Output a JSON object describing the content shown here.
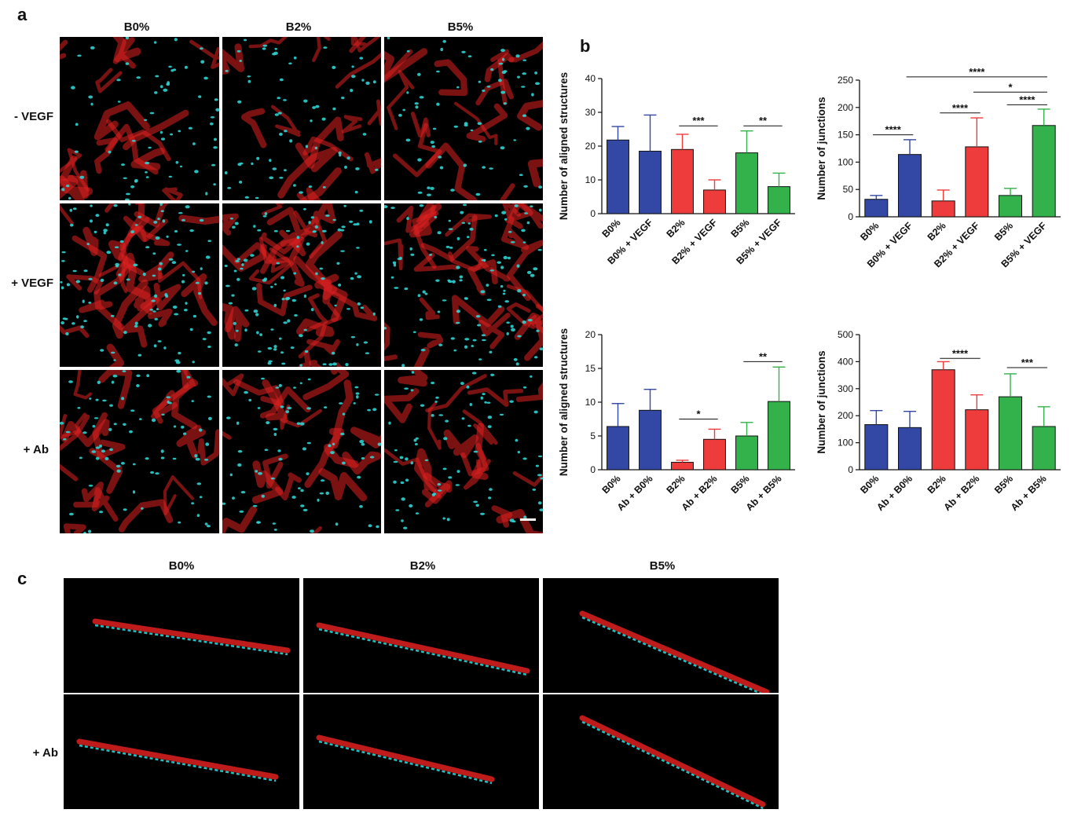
{
  "panel_a": {
    "letter": "a",
    "columns": [
      "B0%",
      "B2%",
      "B5%"
    ],
    "rows": [
      "- VEGF",
      "+ VEGF",
      "+ Ab"
    ]
  },
  "panel_b": {
    "letter": "b"
  },
  "panel_c": {
    "letter": "c",
    "columns": [
      "B0%",
      "B2%",
      "B5%"
    ],
    "rows": [
      "",
      "+ Ab"
    ]
  },
  "colors": {
    "blue": "#3347a4",
    "red": "#ee3b3b",
    "green": "#33b24b",
    "nuclei": "#2ed3d3",
    "actin": "#e02020"
  },
  "chart_data": [
    {
      "type": "bar",
      "ylabel": "Number of aligned structures",
      "ylim": [
        0,
        40
      ],
      "yticks": [
        0,
        10,
        20,
        30,
        40
      ],
      "categories": [
        "B0%",
        "B0% + VEGF",
        "B2%",
        "B2% + VEGF",
        "B5%",
        "B5% + VEGF"
      ],
      "values": [
        21.8,
        18.5,
        19,
        7,
        18,
        8
      ],
      "errors": [
        4,
        10.7,
        4.5,
        3,
        6.5,
        4
      ],
      "colors": [
        "blue",
        "blue",
        "red",
        "red",
        "green",
        "green"
      ],
      "significance": [
        {
          "from": 2,
          "to": 3,
          "label": "***",
          "y": 26
        },
        {
          "from": 4,
          "to": 5,
          "label": "**",
          "y": 26
        }
      ]
    },
    {
      "type": "bar",
      "ylabel": "Number of junctions",
      "ylim": [
        0,
        250
      ],
      "yticks": [
        0,
        50,
        100,
        150,
        200,
        250
      ],
      "categories": [
        "B0%",
        "B0% + VEGF",
        "B2%",
        "B2% + VEGF",
        "B5%",
        "B5% + VEGF"
      ],
      "values": [
        32,
        114,
        29,
        128,
        39,
        167
      ],
      "errors": [
        7,
        27,
        20,
        53,
        13,
        30
      ],
      "colors": [
        "blue",
        "blue",
        "red",
        "red",
        "green",
        "green"
      ],
      "significance": [
        {
          "from": 0,
          "to": 1,
          "label": "****",
          "y": 150
        },
        {
          "from": 2,
          "to": 3,
          "label": "****",
          "y": 190
        },
        {
          "from": 4,
          "to": 5,
          "label": "****",
          "y": 205
        },
        {
          "from": 3,
          "to": 5,
          "label": "*",
          "y": 228
        },
        {
          "from": 1,
          "to": 5,
          "label": "****",
          "y": 256
        }
      ]
    },
    {
      "type": "bar",
      "ylabel": "Number of aligned structures",
      "ylim": [
        0,
        20
      ],
      "yticks": [
        0,
        5,
        10,
        15,
        20
      ],
      "categories": [
        "B0%",
        "Ab + B0%",
        "B2%",
        "Ab + B2%",
        "B5%",
        "Ab + B5%"
      ],
      "values": [
        6.4,
        8.8,
        1.1,
        4.5,
        5,
        10.1
      ],
      "errors": [
        3.4,
        3.1,
        0.3,
        1.5,
        2,
        5.1
      ],
      "colors": [
        "blue",
        "blue",
        "red",
        "red",
        "green",
        "green"
      ],
      "significance": [
        {
          "from": 2,
          "to": 3,
          "label": "*",
          "y": 7.5
        },
        {
          "from": 4,
          "to": 5,
          "label": "**",
          "y": 16
        }
      ]
    },
    {
      "type": "bar",
      "ylabel": "Number of junctions",
      "ylim": [
        0,
        500
      ],
      "yticks": [
        0,
        100,
        200,
        300,
        400,
        500
      ],
      "categories": [
        "B0%",
        "Ab + B0%",
        "B2%",
        "Ab + B2%",
        "B5%",
        "Ab + B5%"
      ],
      "values": [
        167,
        156,
        370,
        222,
        270,
        160
      ],
      "errors": [
        52,
        60,
        30,
        55,
        85,
        73
      ],
      "colors": [
        "blue",
        "blue",
        "red",
        "red",
        "green",
        "green"
      ],
      "significance": [
        {
          "from": 2,
          "to": 3,
          "label": "****",
          "y": 412
        },
        {
          "from": 4,
          "to": 5,
          "label": "***",
          "y": 378
        }
      ]
    }
  ]
}
